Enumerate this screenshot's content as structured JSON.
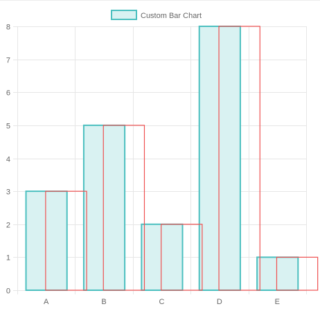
{
  "chart_data": {
    "type": "bar",
    "categories": [
      "A",
      "B",
      "C",
      "D",
      "E"
    ],
    "series": [
      {
        "name": "Custom Bar Chart",
        "values": [
          3,
          5,
          2,
          8,
          1
        ],
        "fill": "#d9f2f2",
        "stroke": "#4bbfbf"
      },
      {
        "values": [
          3,
          5,
          2,
          8,
          1
        ],
        "fill": "none",
        "stroke": "#ef4f4f"
      }
    ],
    "ylim": [
      0,
      8
    ],
    "yticks": [
      0,
      1,
      2,
      3,
      4,
      5,
      6,
      7,
      8
    ],
    "grid": true,
    "legend_position": "top-center"
  },
  "colors": {
    "grid": "#e6e6e6",
    "tick_text": "#666666"
  }
}
